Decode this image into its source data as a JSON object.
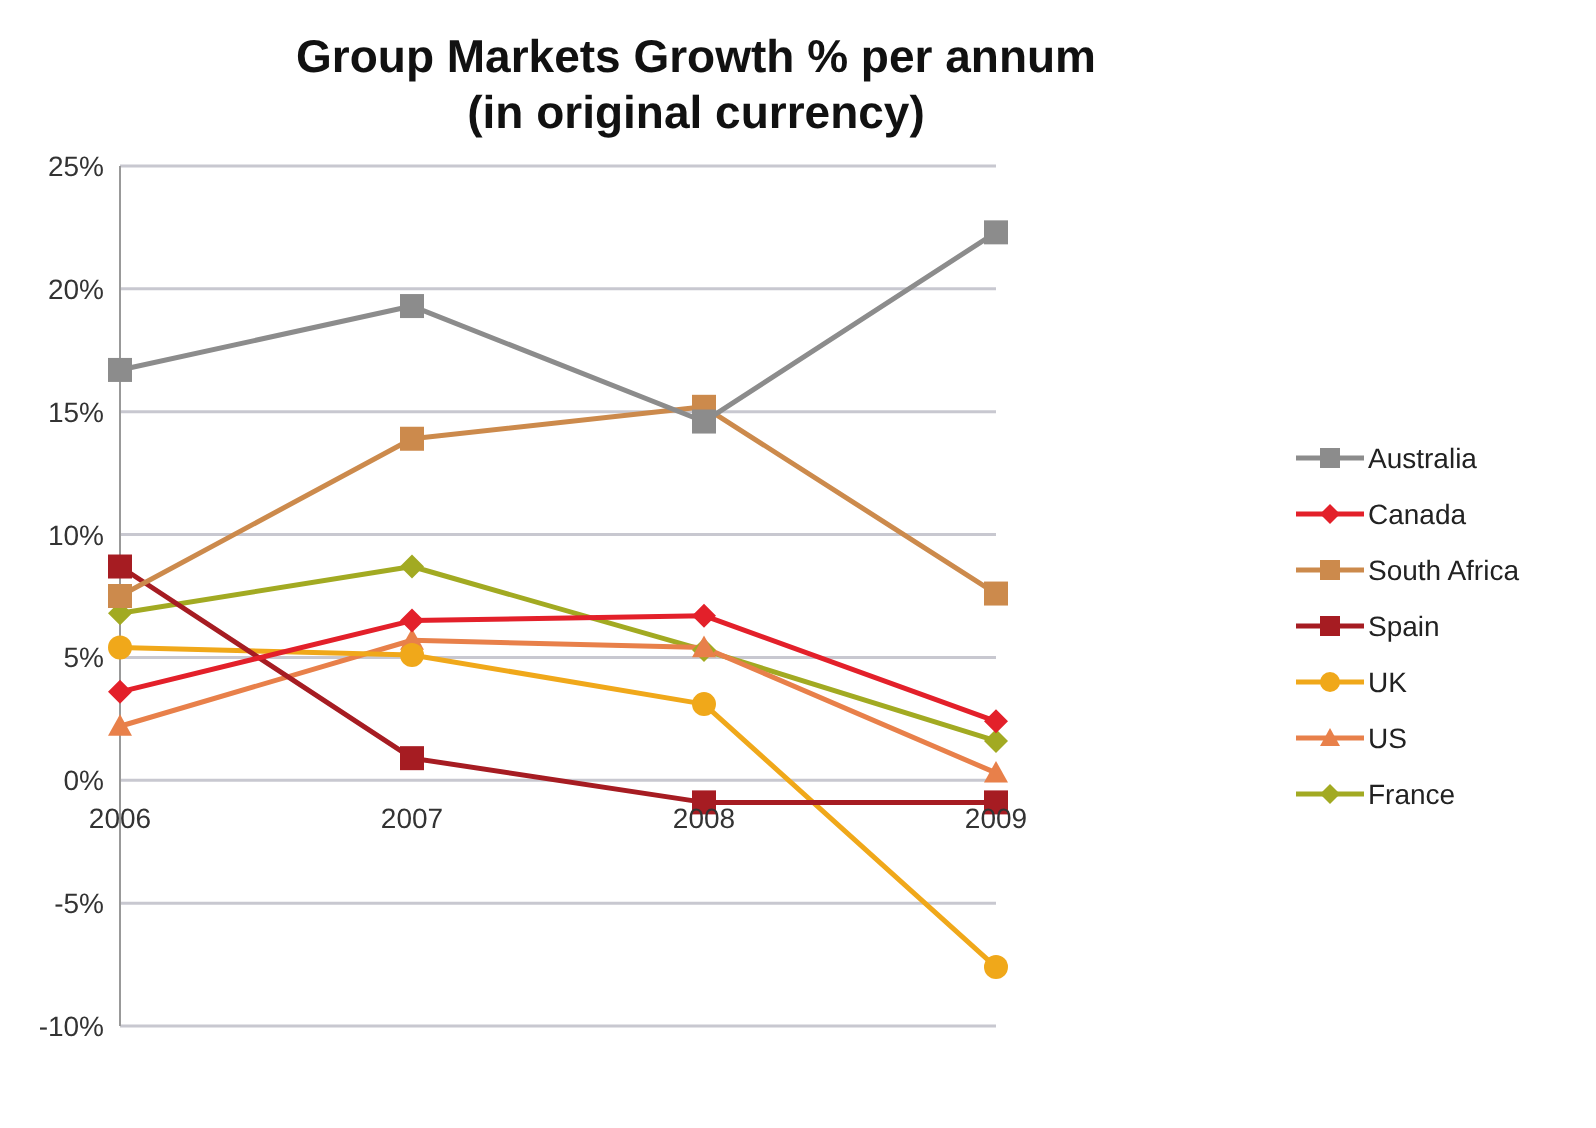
{
  "chart_data": {
    "type": "line",
    "title": "Group Markets Growth % per annum (in original currency)",
    "categories": [
      "2006",
      "2007",
      "2008",
      "2009"
    ],
    "series": [
      {
        "name": "Australia",
        "color": "#8c8c8c",
        "marker": "square",
        "values": [
          16.7,
          19.3,
          14.6,
          22.3
        ]
      },
      {
        "name": "Canada",
        "color": "#e3202a",
        "marker": "diamond",
        "values": [
          3.6,
          6.5,
          6.7,
          2.4
        ]
      },
      {
        "name": "South Africa",
        "color": "#cc8a4c",
        "marker": "square",
        "values": [
          7.5,
          13.9,
          15.2,
          7.6
        ]
      },
      {
        "name": "Spain",
        "color": "#a61c22",
        "marker": "square",
        "values": [
          8.7,
          0.9,
          -0.9,
          -0.9
        ]
      },
      {
        "name": "UK",
        "color": "#f0a81a",
        "marker": "circle",
        "values": [
          5.4,
          5.1,
          3.1,
          -7.6
        ]
      },
      {
        "name": "US",
        "color": "#e8804a",
        "marker": "triangle",
        "values": [
          2.2,
          5.7,
          5.4,
          0.3
        ]
      },
      {
        "name": "France",
        "color": "#a2aa22",
        "marker": "diamond",
        "values": [
          6.8,
          8.7,
          5.3,
          1.6
        ]
      }
    ],
    "ylim": [
      -10,
      25
    ],
    "yticks": [
      {
        "value": -10,
        "label": "-10%"
      },
      {
        "value": -5,
        "label": "-5%"
      },
      {
        "value": 0,
        "label": "0%"
      },
      {
        "value": 5,
        "label": "5%"
      },
      {
        "value": 10,
        "label": "10%"
      },
      {
        "value": 15,
        "label": "15%"
      },
      {
        "value": 20,
        "label": "20%"
      },
      {
        "value": 25,
        "label": "25%"
      }
    ],
    "grid": "y",
    "legend": "right"
  }
}
